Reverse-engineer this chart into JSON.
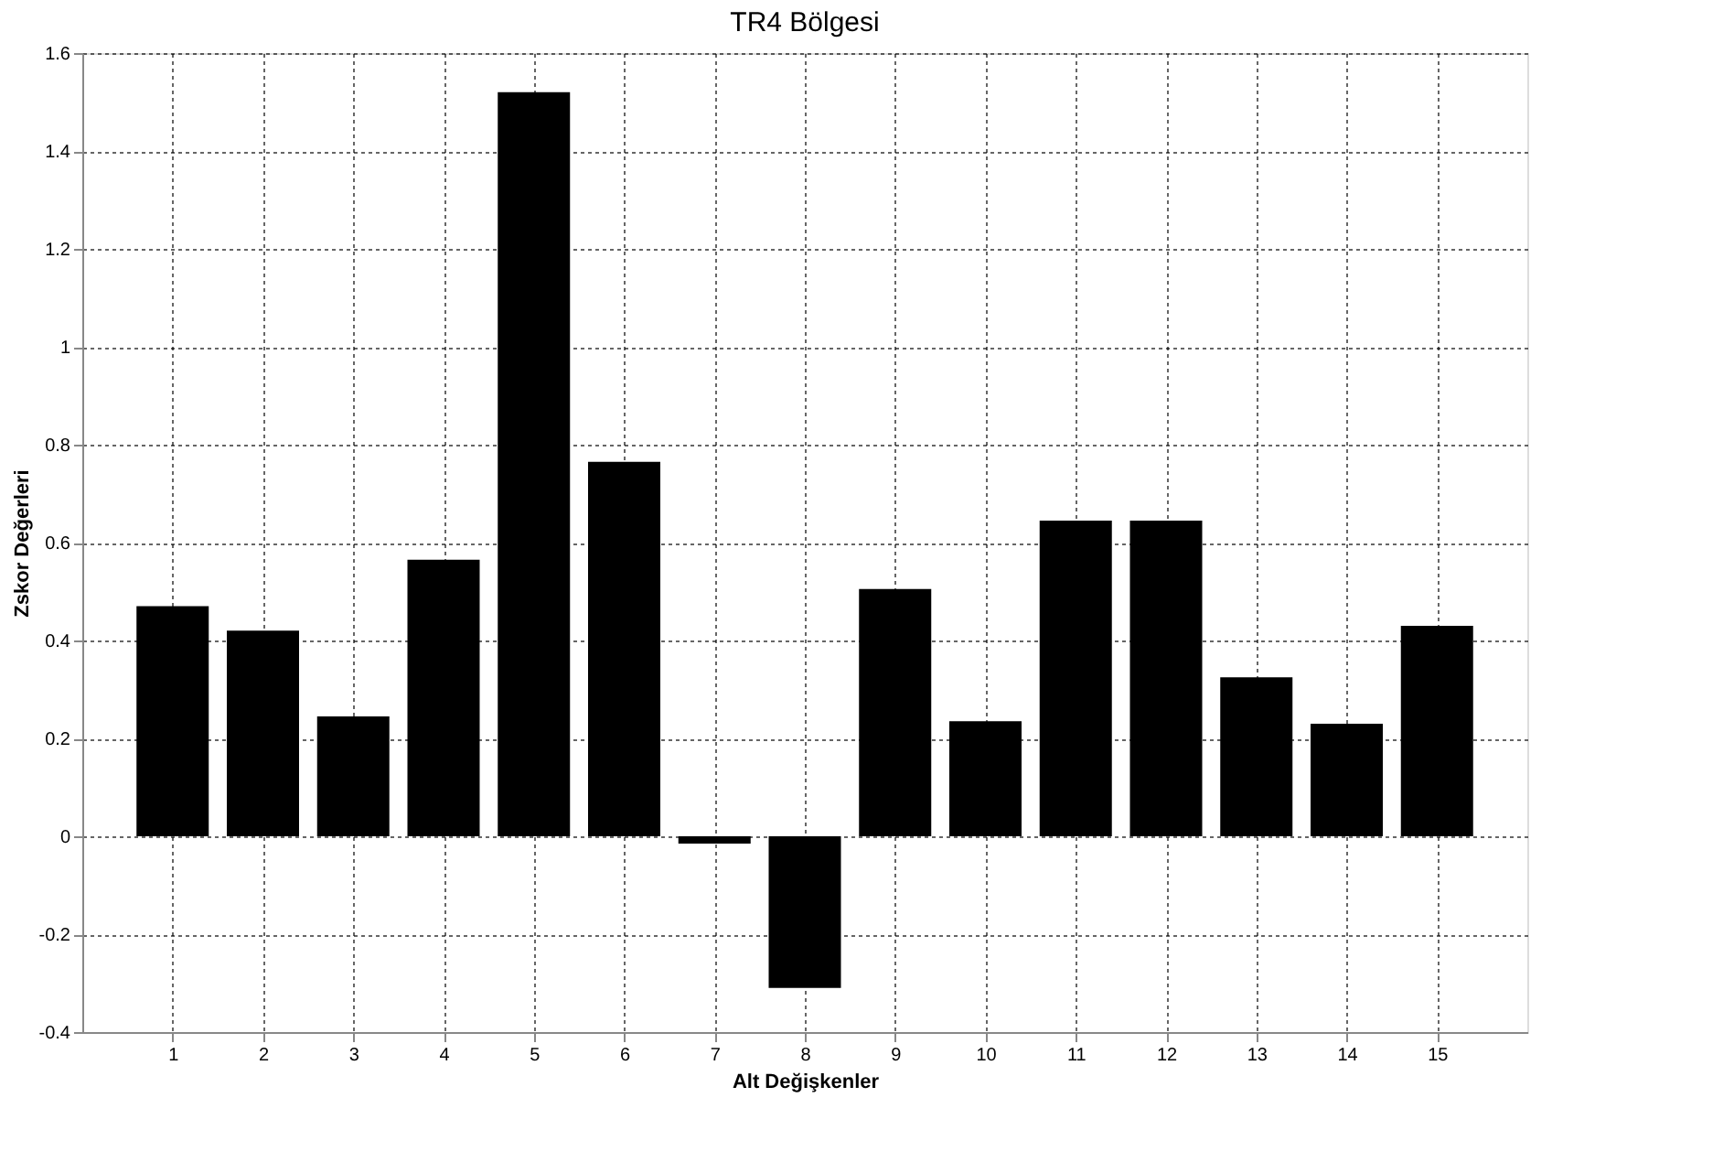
{
  "chart_data": {
    "type": "bar",
    "title": "TR4 Bölgesi",
    "xlabel": "Alt Değişkenler",
    "ylabel": "Zskor Değerleri",
    "x": [
      1,
      2,
      3,
      4,
      5,
      6,
      7,
      8,
      9,
      10,
      11,
      12,
      13,
      14,
      15
    ],
    "values": [
      0.47,
      0.42,
      0.245,
      0.565,
      1.52,
      0.765,
      -0.015,
      -0.31,
      0.505,
      0.235,
      0.645,
      0.645,
      0.325,
      0.23,
      0.43
    ],
    "color": "#000000",
    "xlim": [
      0,
      16
    ],
    "xticks": [
      1,
      2,
      3,
      4,
      5,
      6,
      7,
      8,
      9,
      10,
      11,
      12,
      13,
      14,
      15
    ],
    "ylim": [
      -0.4,
      1.6
    ],
    "yticks": [
      -0.4,
      -0.2,
      0,
      0.2,
      0.4,
      0.6,
      0.8,
      1,
      1.2,
      1.4,
      1.6
    ],
    "grid": true,
    "line_style": "dotted"
  }
}
